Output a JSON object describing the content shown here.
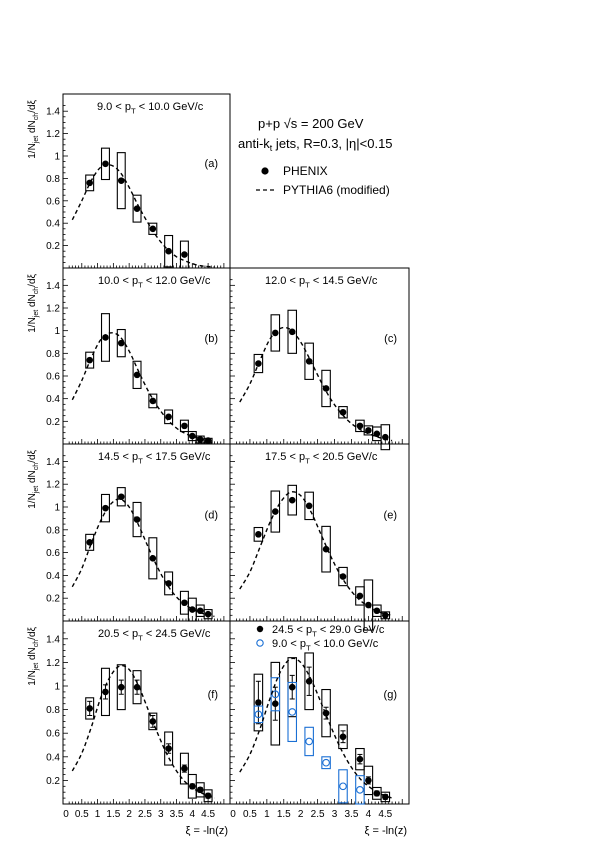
{
  "figure": {
    "legend": {
      "energy_label": "p+p √s = 200 GeV",
      "jets_label": "anti-kt jets, R=0.3, |η|<0.15",
      "phenix_label": "PHENIX",
      "pythia_label": "PYTHIA6 (modified)"
    },
    "ylabel": "1/Njet dNch/dξ",
    "xlabel": "ξ = -ln(z)"
  },
  "chart_data": [
    {
      "type": "scatter",
      "panel": "a",
      "tag": "(a)",
      "title": "9.0 < pT < 10.0 GeV/c",
      "xlabel": "",
      "ylabel": "1/Njet dNch/dξ",
      "xlim": [
        0,
        5
      ],
      "ylim": [
        0,
        1.5
      ],
      "xticks": [],
      "yticks": [
        "0.2",
        "0.4",
        "0.6",
        "0.8",
        "1",
        "1.2",
        "1.4"
      ],
      "series": [
        {
          "marker": "filled-circle",
          "color": "#000000",
          "x": [
            0.75,
            1.25,
            1.75,
            2.25,
            2.75,
            3.25,
            3.75
          ],
          "y": [
            0.76,
            0.93,
            0.78,
            0.53,
            0.35,
            0.15,
            0.12
          ],
          "syst": [
            0.07,
            0.14,
            0.25,
            0.12,
            0.05,
            0.14,
            0.12
          ]
        }
      ],
      "curve": {
        "style": "dashed",
        "x": [
          0.2,
          0.5,
          0.8,
          1.1,
          1.4,
          1.7,
          2.0,
          2.3,
          2.6,
          2.9,
          3.2,
          3.5,
          3.8,
          4.1,
          4.4,
          4.7
        ],
        "y": [
          0.43,
          0.6,
          0.78,
          0.9,
          0.92,
          0.86,
          0.72,
          0.55,
          0.4,
          0.27,
          0.17,
          0.1,
          0.06,
          0.03,
          0.015,
          0.01
        ]
      }
    },
    {
      "type": "scatter",
      "panel": "b",
      "tag": "(b)",
      "title": "10.0 < pT < 12.0 GeV/c",
      "xlabel": "",
      "ylabel": "1/Njet dNch/dξ",
      "xlim": [
        0,
        5
      ],
      "ylim": [
        0,
        1.5
      ],
      "xticks": [],
      "yticks": [
        "0.2",
        "0.4",
        "0.6",
        "0.8",
        "1",
        "1.2",
        "1.4"
      ],
      "series": [
        {
          "marker": "filled-circle",
          "color": "#000000",
          "x": [
            0.75,
            1.25,
            1.75,
            2.25,
            2.75,
            3.25,
            3.75,
            4.0,
            4.25,
            4.5
          ],
          "y": [
            0.74,
            0.94,
            0.89,
            0.61,
            0.38,
            0.24,
            0.16,
            0.07,
            0.04,
            0.03
          ],
          "syst": [
            0.07,
            0.21,
            0.12,
            0.12,
            0.06,
            0.06,
            0.05,
            0.04,
            0.03,
            0.02
          ]
        }
      ],
      "curve": {
        "style": "dashed",
        "x": [
          0.2,
          0.5,
          0.8,
          1.1,
          1.4,
          1.7,
          2.0,
          2.3,
          2.6,
          2.9,
          3.2,
          3.5,
          3.8,
          4.1,
          4.4,
          4.7
        ],
        "y": [
          0.39,
          0.56,
          0.76,
          0.92,
          0.98,
          0.95,
          0.82,
          0.64,
          0.47,
          0.33,
          0.22,
          0.14,
          0.09,
          0.06,
          0.04,
          0.02
        ]
      }
    },
    {
      "type": "scatter",
      "panel": "c",
      "tag": "(c)",
      "title": "12.0 < pT < 14.5 GeV/c",
      "xlabel": "",
      "ylabel": "",
      "xlim": [
        0,
        5
      ],
      "ylim": [
        0,
        1.5
      ],
      "xticks": [],
      "yticks": [],
      "series": [
        {
          "marker": "filled-circle",
          "color": "#000000",
          "x": [
            0.75,
            1.25,
            1.75,
            2.25,
            2.75,
            3.25,
            3.75,
            4.0,
            4.25,
            4.5
          ],
          "y": [
            0.71,
            0.98,
            0.99,
            0.73,
            0.49,
            0.28,
            0.16,
            0.12,
            0.09,
            0.06
          ],
          "syst": [
            0.08,
            0.16,
            0.19,
            0.16,
            0.16,
            0.05,
            0.05,
            0.04,
            0.06,
            0.11
          ]
        }
      ],
      "curve": {
        "style": "dashed",
        "x": [
          0.2,
          0.5,
          0.8,
          1.1,
          1.4,
          1.7,
          2.0,
          2.3,
          2.6,
          2.9,
          3.2,
          3.5,
          3.8,
          4.1,
          4.4,
          4.7
        ],
        "y": [
          0.37,
          0.53,
          0.74,
          0.93,
          1.02,
          1.01,
          0.9,
          0.73,
          0.55,
          0.39,
          0.27,
          0.18,
          0.12,
          0.08,
          0.05,
          0.03
        ]
      }
    },
    {
      "type": "scatter",
      "panel": "d",
      "tag": "(d)",
      "title": "14.5 < pT < 17.5 GeV/c",
      "xlabel": "",
      "ylabel": "1/Njet dNch/dξ",
      "xlim": [
        0,
        5
      ],
      "ylim": [
        0,
        1.5
      ],
      "xticks": [],
      "yticks": [
        "0.2",
        "0.4",
        "0.6",
        "0.8",
        "1",
        "1.2",
        "1.4"
      ],
      "series": [
        {
          "marker": "filled-circle",
          "color": "#000000",
          "x": [
            0.75,
            1.25,
            1.75,
            2.25,
            2.75,
            3.25,
            3.75,
            4.0,
            4.25,
            4.5
          ],
          "y": [
            0.69,
            0.99,
            1.09,
            0.89,
            0.55,
            0.33,
            0.16,
            0.1,
            0.09,
            0.06
          ],
          "syst": [
            0.07,
            0.12,
            0.08,
            0.15,
            0.18,
            0.1,
            0.1,
            0.1,
            0.05,
            0.04
          ]
        }
      ],
      "curve": {
        "style": "dashed",
        "x": [
          0.2,
          0.5,
          0.8,
          1.1,
          1.4,
          1.7,
          2.0,
          2.3,
          2.6,
          2.9,
          3.2,
          3.5,
          3.8,
          4.1,
          4.4,
          4.7
        ],
        "y": [
          0.3,
          0.46,
          0.68,
          0.88,
          1.02,
          1.07,
          1.0,
          0.84,
          0.65,
          0.47,
          0.32,
          0.21,
          0.14,
          0.09,
          0.06,
          0.04
        ]
      }
    },
    {
      "type": "scatter",
      "panel": "e",
      "tag": "(e)",
      "title": "17.5 < pT < 20.5 GeV/c",
      "xlabel": "",
      "ylabel": "",
      "xlim": [
        0,
        5
      ],
      "ylim": [
        0,
        1.5
      ],
      "xticks": [],
      "yticks": [],
      "series": [
        {
          "marker": "filled-circle",
          "color": "#000000",
          "x": [
            0.75,
            1.25,
            1.75,
            2.25,
            2.75,
            3.25,
            3.75,
            4.0,
            4.25,
            4.5
          ],
          "y": [
            0.76,
            0.96,
            1.06,
            1.01,
            0.63,
            0.39,
            0.22,
            0.14,
            0.09,
            0.05
          ],
          "syst": [
            0.06,
            0.18,
            0.13,
            0.12,
            0.2,
            0.08,
            0.08,
            0.22,
            0.05,
            0.03
          ]
        }
      ],
      "curve": {
        "style": "dashed",
        "x": [
          0.2,
          0.5,
          0.8,
          1.1,
          1.4,
          1.7,
          2.0,
          2.3,
          2.6,
          2.9,
          3.2,
          3.5,
          3.8,
          4.1,
          4.4,
          4.7
        ],
        "y": [
          0.28,
          0.43,
          0.65,
          0.87,
          1.04,
          1.13,
          1.1,
          0.96,
          0.76,
          0.56,
          0.39,
          0.26,
          0.17,
          0.11,
          0.07,
          0.05
        ]
      }
    },
    {
      "type": "scatter",
      "panel": "f",
      "tag": "(f)",
      "title": "20.5 < pT < 24.5 GeV/c",
      "xlabel": "ξ = -ln(z)",
      "ylabel": "1/Njet dNch/dξ",
      "xlim": [
        0,
        5
      ],
      "ylim": [
        0,
        1.5
      ],
      "xticks": [
        "0",
        "0.5",
        "1",
        "1.5",
        "2",
        "2.5",
        "3",
        "3.5",
        "4",
        "4.5"
      ],
      "yticks": [
        "0.2",
        "0.4",
        "0.6",
        "0.8",
        "1",
        "1.2",
        "1.4"
      ],
      "series": [
        {
          "marker": "filled-circle",
          "color": "#000000",
          "x": [
            0.75,
            1.25,
            1.75,
            2.25,
            2.75,
            3.25,
            3.75,
            4.0,
            4.25,
            4.5
          ],
          "y": [
            0.81,
            0.95,
            0.99,
            0.99,
            0.7,
            0.47,
            0.3,
            0.15,
            0.12,
            0.07
          ],
          "syst": [
            0.09,
            0.2,
            0.19,
            0.14,
            0.07,
            0.14,
            0.13,
            0.1,
            0.06,
            0.05
          ],
          "stat": [
            0.06,
            0.06,
            0.06,
            0.06,
            0.05,
            0.04,
            0.03,
            0.02,
            0.02,
            0.02
          ]
        }
      ],
      "curve": {
        "style": "dashed",
        "x": [
          0.2,
          0.5,
          0.8,
          1.1,
          1.4,
          1.7,
          2.0,
          2.3,
          2.6,
          2.9,
          3.2,
          3.5,
          3.8,
          4.1,
          4.4,
          4.7
        ],
        "y": [
          0.28,
          0.43,
          0.65,
          0.9,
          1.08,
          1.17,
          1.14,
          1.0,
          0.8,
          0.6,
          0.42,
          0.28,
          0.18,
          0.12,
          0.08,
          0.05
        ]
      }
    },
    {
      "type": "scatter",
      "panel": "g",
      "tag": "(g)",
      "title": "",
      "xlabel": "ξ = -ln(z)",
      "ylabel": "",
      "xlim": [
        0,
        5
      ],
      "ylim": [
        0,
        1.5
      ],
      "xticks": [
        "0",
        "0.5",
        "1",
        "1.5",
        "2",
        "2.5",
        "3",
        "3.5",
        "4",
        "4.5"
      ],
      "yticks": [],
      "legend": [
        {
          "label": "24.5 < pT < 29.0 GeV/c",
          "marker": "filled-circle",
          "color": "#000000"
        },
        {
          "label": "9.0 < pT < 10.0 GeV/c",
          "marker": "open-circle",
          "color": "#1a6fd4"
        }
      ],
      "series": [
        {
          "marker": "filled-circle",
          "color": "#000000",
          "x": [
            0.75,
            1.25,
            1.75,
            2.25,
            2.75,
            3.25,
            3.75,
            4.0,
            4.25,
            4.5
          ],
          "y": [
            0.86,
            0.85,
            0.99,
            1.04,
            0.77,
            0.57,
            0.38,
            0.2,
            0.09,
            0.06
          ],
          "syst": [
            0.24,
            0.35,
            0.25,
            0.24,
            0.2,
            0.1,
            0.09,
            0.12,
            0.05,
            0.04
          ],
          "stat": [
            0.18,
            0.14,
            0.1,
            0.12,
            0.05,
            0.05,
            0.04,
            0.03,
            0.02,
            0.02
          ]
        },
        {
          "marker": "open-circle",
          "color": "#1a6fd4",
          "x": [
            0.75,
            1.25,
            1.75,
            2.25,
            2.75,
            3.25,
            3.75
          ],
          "y": [
            0.76,
            0.93,
            0.78,
            0.53,
            0.35,
            0.15,
            0.12
          ],
          "syst": [
            0.07,
            0.14,
            0.25,
            0.12,
            0.05,
            0.14,
            0.12
          ]
        }
      ],
      "curve": {
        "style": "dashed",
        "x": [
          0.2,
          0.5,
          0.8,
          1.1,
          1.4,
          1.7,
          2.0,
          2.3,
          2.6,
          2.9,
          3.2,
          3.5,
          3.8,
          4.1,
          4.4,
          4.7
        ],
        "y": [
          0.27,
          0.42,
          0.64,
          0.9,
          1.12,
          1.23,
          1.2,
          1.06,
          0.86,
          0.65,
          0.46,
          0.31,
          0.2,
          0.13,
          0.08,
          0.05
        ]
      }
    }
  ]
}
